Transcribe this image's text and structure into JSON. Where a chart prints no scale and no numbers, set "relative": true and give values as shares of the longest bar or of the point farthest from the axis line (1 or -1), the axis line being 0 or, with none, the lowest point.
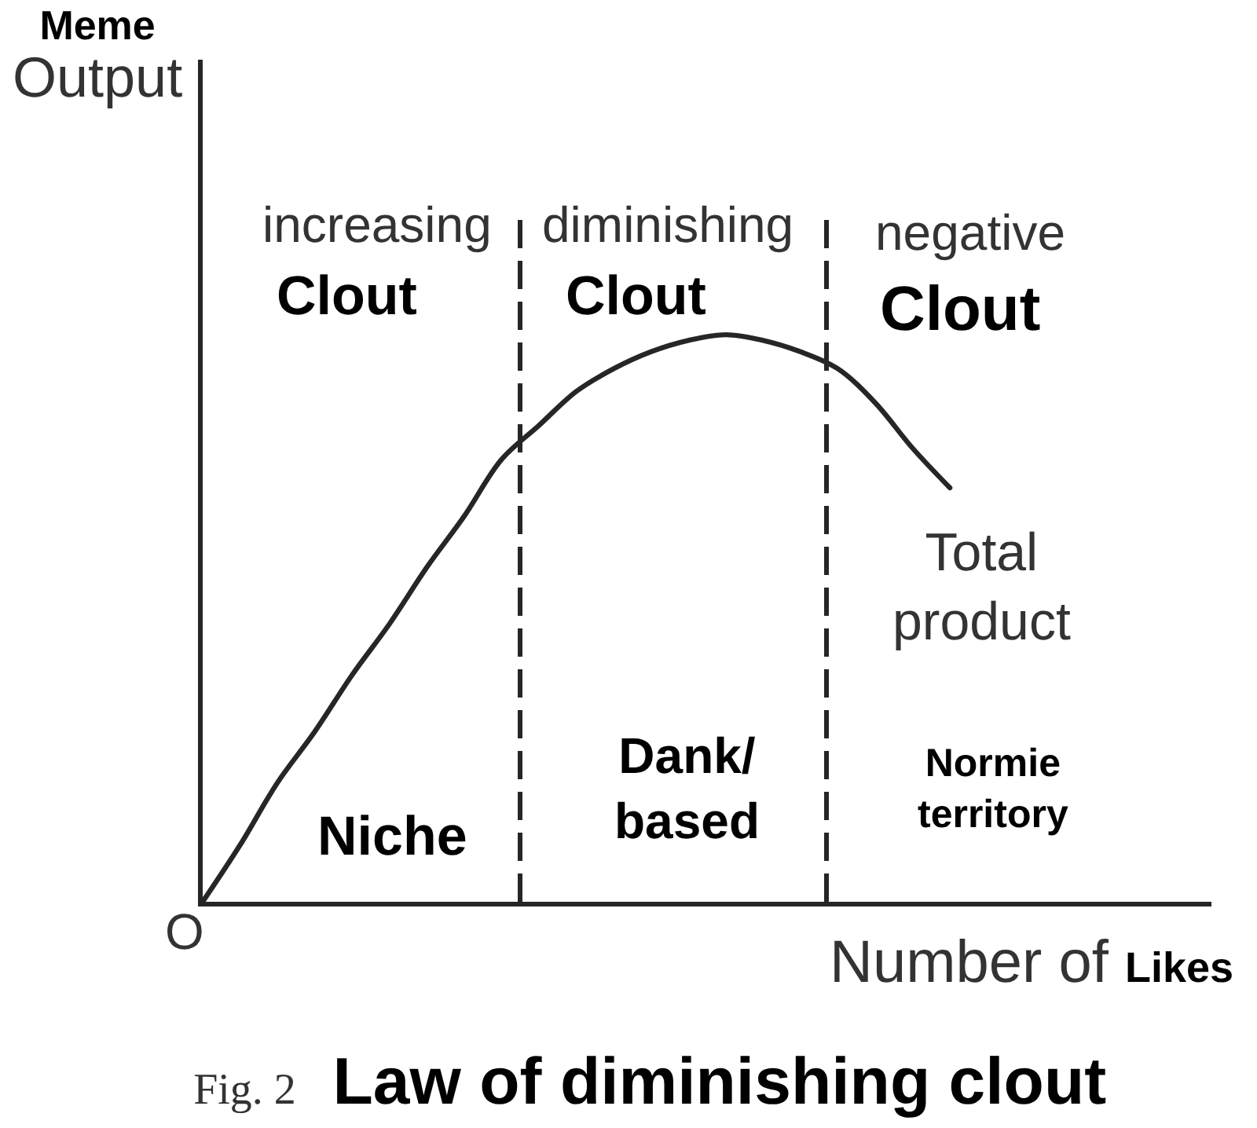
{
  "chart_data": {
    "type": "line",
    "title": "Fig. 2 Law of diminishing clout",
    "xlabel": "Number of Likes",
    "ylabel": "Meme\nOutput",
    "relative": true,
    "legend": false,
    "line_style": "solid",
    "categories": [
      null,
      null,
      null,
      null,
      null,
      null,
      null,
      null,
      null,
      null,
      null,
      null,
      null,
      null,
      null,
      null,
      null,
      null,
      null,
      null,
      null,
      null,
      null,
      null,
      null,
      null,
      null,
      null
    ],
    "series": [
      {
        "name": "Total product",
        "color": "#262626",
        "values": [
          0,
          0.1,
          0.21,
          0.3,
          0.4,
          0.49,
          0.59,
          0.68,
          0.78,
          0.84,
          0.9,
          0.94,
          0.97,
          0.99,
          1,
          0.99,
          0.97,
          0.94,
          0.88,
          0.8,
          0.73,
          null,
          null,
          null,
          null,
          null,
          null,
          null
        ]
      }
    ],
    "annotations": [
      "increasing",
      "Clout",
      "diminishing",
      "Clout",
      "negative",
      "Clout",
      "Niche",
      "Dank/\nbased",
      "Normie\nterritory",
      "O"
    ]
  }
}
